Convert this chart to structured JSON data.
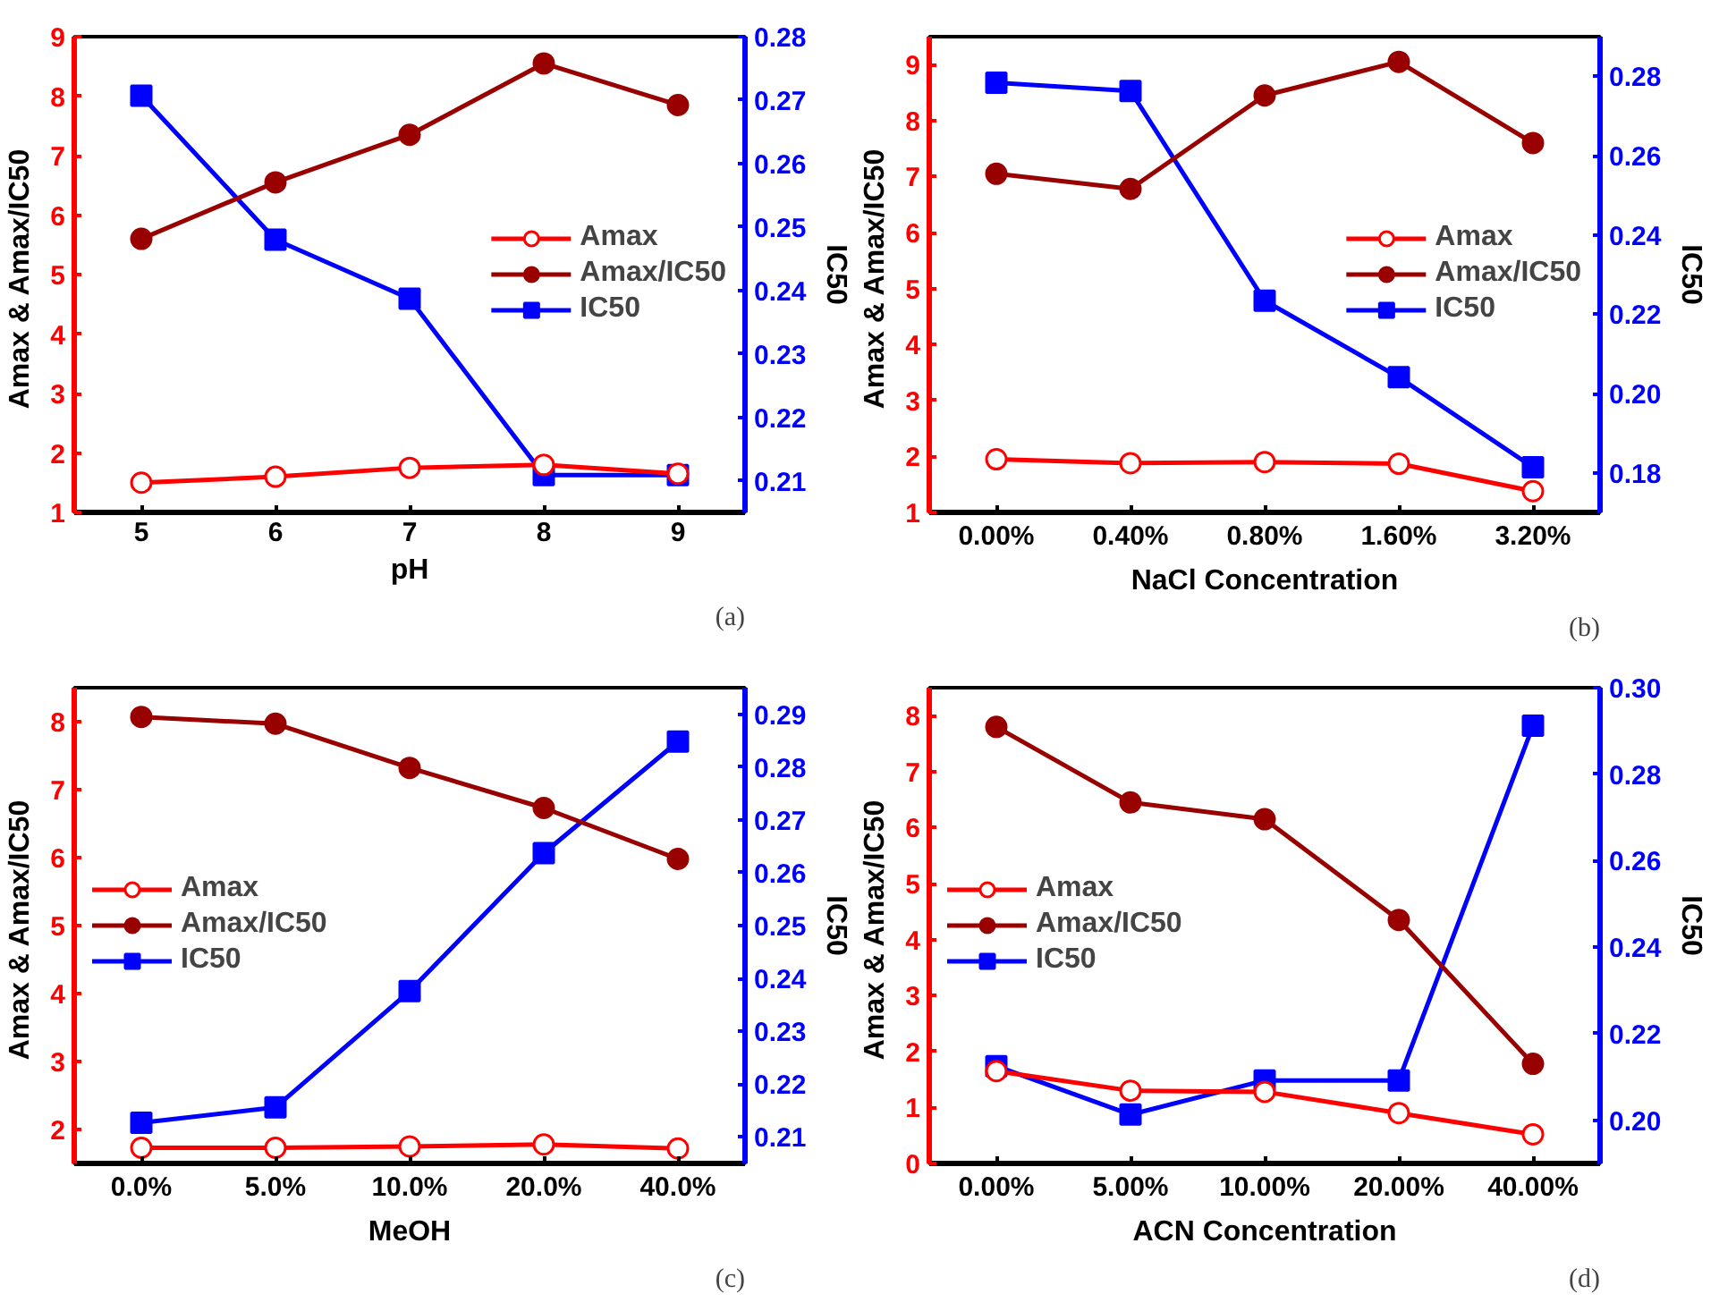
{
  "chart_data": [
    {
      "type": "line",
      "x": [
        5,
        6,
        7,
        8,
        9
      ],
      "xlim": [
        4.5,
        9.5
      ],
      "xticks": [
        5,
        6,
        7,
        8,
        9
      ],
      "xlabel": "pH",
      "ylabel": "Amax  & Amax/IC50",
      "y2label": "IC50",
      "ylim": [
        1,
        9
      ],
      "yticks": [
        1,
        2,
        3,
        4,
        5,
        6,
        7,
        8,
        9
      ],
      "y2lim": [
        0.205,
        0.28
      ],
      "y2ticks": [
        0.21,
        0.22,
        0.23,
        0.24,
        0.25,
        0.26,
        0.27,
        0.28
      ],
      "legend": "right",
      "grid": false,
      "annotations": [
        "(a)"
      ],
      "series": [
        {
          "name": "Amax",
          "color": "#ff0000",
          "marker": "circle",
          "values": [
            1.5,
            1.6,
            1.75,
            1.8,
            1.65
          ]
        },
        {
          "name": "Amax/IC50",
          "color": "#990000",
          "marker": "circle",
          "values": [
            5.6,
            6.55,
            7.35,
            8.55,
            7.85
          ]
        },
        {
          "name": "IC50",
          "color": "#0000ff",
          "marker": "square",
          "axis": "y2",
          "values": [
            0.2707,
            0.248,
            0.2387,
            0.2109,
            0.2109
          ]
        }
      ]
    },
    {
      "type": "line",
      "categories": [
        "0.00%",
        "0.40%",
        "0.80%",
        "1.60%",
        "3.20%"
      ],
      "xlabel": "NaCl Concentration",
      "ylabel": "Amax  & Amax/IC50",
      "y2label": "IC50",
      "ylim": [
        1,
        9.5
      ],
      "yticks": [
        1,
        2,
        3,
        4,
        5,
        6,
        7,
        8,
        9
      ],
      "y2lim": [
        0.17,
        0.29
      ],
      "y2ticks": [
        {
          "value": 0.18,
          "label": "0.18"
        },
        {
          "value": 0.2,
          "label": "0.20"
        },
        {
          "value": 0.22,
          "label": "0.22"
        },
        {
          "value": 0.24,
          "label": "0.24"
        },
        {
          "value": 0.26,
          "label": "0.26"
        },
        {
          "value": 0.28,
          "label": "0.28"
        }
      ],
      "legend": "right",
      "grid": false,
      "annotations": [
        "(b)"
      ],
      "series": [
        {
          "name": "Amax",
          "color": "#ff0000",
          "marker": "circle",
          "values": [
            1.95,
            1.88,
            1.9,
            1.87,
            1.38
          ]
        },
        {
          "name": "Amax/IC50",
          "color": "#990000",
          "marker": "circle",
          "values": [
            7.05,
            6.78,
            8.45,
            9.05,
            7.6
          ]
        },
        {
          "name": "IC50",
          "color": "#0000ff",
          "marker": "square",
          "axis": "y2",
          "values": [
            0.2784,
            0.2763,
            0.2234,
            0.2041,
            0.1814
          ]
        }
      ]
    },
    {
      "type": "line",
      "categories": [
        "0.0%",
        "5.0%",
        "10.0%",
        "20.0%",
        "40.0%"
      ],
      "xlabel": "MeOH",
      "ylabel": "Amax  & Amax/IC50",
      "y2label": "IC50",
      "ylim": [
        1.5,
        8.5
      ],
      "yticks": [
        2,
        3,
        4,
        5,
        6,
        7,
        8
      ],
      "y2lim": [
        0.205,
        0.295
      ],
      "y2ticks": [
        0.21,
        0.22,
        0.23,
        0.24,
        0.25,
        0.26,
        0.27,
        0.28,
        0.29
      ],
      "legend": "left",
      "grid": false,
      "annotations": [
        "(c)"
      ],
      "series": [
        {
          "name": "Amax",
          "color": "#ff0000",
          "marker": "circle",
          "values": [
            1.73,
            1.73,
            1.75,
            1.78,
            1.72
          ]
        },
        {
          "name": "Amax/IC50",
          "color": "#990000",
          "marker": "circle",
          "values": [
            8.07,
            7.97,
            7.32,
            6.73,
            5.98
          ]
        },
        {
          "name": "IC50",
          "color": "#0000ff",
          "marker": "square",
          "axis": "y2",
          "values": [
            0.2127,
            0.2156,
            0.2376,
            0.2637,
            0.2848
          ]
        }
      ]
    },
    {
      "type": "line",
      "categories": [
        "0.00%",
        "5.00%",
        "10.00%",
        "20.00%",
        "40.00%"
      ],
      "xlabel": "ACN Concentration",
      "ylabel": "Amax  & Amax/IC50",
      "y2label": "IC50",
      "ylim": [
        0,
        8.5
      ],
      "yticks": [
        0,
        1,
        2,
        3,
        4,
        5,
        6,
        7,
        8
      ],
      "y2lim": [
        0.19,
        0.3
      ],
      "y2ticks": [
        {
          "value": 0.2,
          "label": "0.20"
        },
        {
          "value": 0.22,
          "label": "0.22"
        },
        {
          "value": 0.24,
          "label": "0.24"
        },
        {
          "value": 0.26,
          "label": "0.26"
        },
        {
          "value": 0.28,
          "label": "0.28"
        },
        {
          "value": 0.3,
          "label": "0.30"
        }
      ],
      "legend": "left",
      "grid": false,
      "annotations": [
        "(d)"
      ],
      "series": [
        {
          "name": "Amax",
          "color": "#ff0000",
          "marker": "circle",
          "values": [
            1.65,
            1.3,
            1.28,
            0.9,
            0.52
          ]
        },
        {
          "name": "Amax/IC50",
          "color": "#990000",
          "marker": "circle",
          "values": [
            7.8,
            6.45,
            6.15,
            4.35,
            1.78
          ]
        },
        {
          "name": "IC50",
          "color": "#0000ff",
          "marker": "square",
          "axis": "y2",
          "values": [
            0.2125,
            0.2013,
            0.2092,
            0.2092,
            0.2912
          ]
        }
      ]
    }
  ]
}
